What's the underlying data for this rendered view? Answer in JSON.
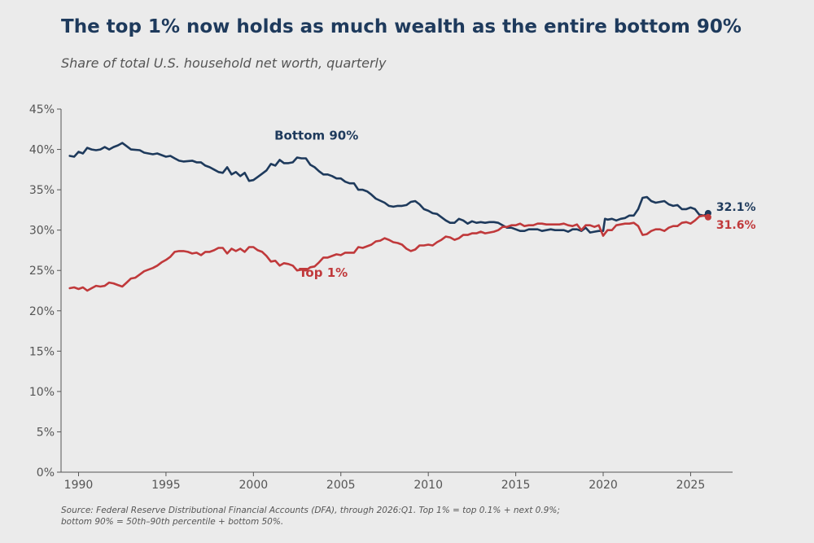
{
  "header": {
    "title": "The top 1% now holds as much wealth as the entire bottom 90%",
    "subtitle": "Share of total U.S. household net worth, quarterly"
  },
  "footer": {
    "source_line1": "Source: Federal Reserve Distributional Financial Accounts (DFA), through 2026:Q1. Top 1% = top 0.1% + next 0.9%;",
    "source_line2": "bottom 90% = 50th–90th percentile + bottom 50%."
  },
  "colors": {
    "bottom90": "#1e3a5c",
    "top1": "#c0393b",
    "axis": "#555555",
    "background": "#ebebeb"
  },
  "chart_data": {
    "type": "line",
    "title": "The top 1% now holds as much wealth as the entire bottom 90%",
    "subtitle": "Share of total U.S. household net worth, quarterly",
    "xlabel": "",
    "ylabel": "",
    "xlim": [
      1989,
      2027.4
    ],
    "ylim": [
      0,
      45
    ],
    "x_ticks": [
      1990,
      1995,
      2000,
      2005,
      2010,
      2015,
      2020,
      2025
    ],
    "y_ticks": [
      0,
      5,
      10,
      15,
      20,
      25,
      30,
      35,
      40,
      45
    ],
    "y_tick_labels": [
      "0%",
      "5%",
      "10%",
      "15%",
      "20%",
      "25%",
      "30%",
      "35%",
      "40%",
      "45%"
    ],
    "grid": false,
    "series": [
      {
        "name": "Bottom 90%",
        "color": "#1e3a5c",
        "end_label": "32.1%",
        "points": [
          [
            1989.5,
            39.2
          ],
          [
            1989.75,
            39.1
          ],
          [
            1990.0,
            39.7
          ],
          [
            1990.25,
            39.5
          ],
          [
            1990.5,
            40.2
          ],
          [
            1990.75,
            40.0
          ],
          [
            1991.0,
            39.9
          ],
          [
            1991.25,
            40.0
          ],
          [
            1991.5,
            40.3
          ],
          [
            1991.75,
            40.0
          ],
          [
            1992.0,
            40.3
          ],
          [
            1992.25,
            40.5
          ],
          [
            1992.5,
            40.8
          ],
          [
            1992.75,
            40.4
          ],
          [
            1993.0,
            40.0
          ],
          [
            1993.5,
            39.9
          ],
          [
            1993.75,
            39.6
          ],
          [
            1994.0,
            39.5
          ],
          [
            1994.25,
            39.4
          ],
          [
            1994.5,
            39.5
          ],
          [
            1994.75,
            39.3
          ],
          [
            1995.0,
            39.1
          ],
          [
            1995.25,
            39.2
          ],
          [
            1995.5,
            38.9
          ],
          [
            1995.75,
            38.6
          ],
          [
            1996.0,
            38.5
          ],
          [
            1996.5,
            38.6
          ],
          [
            1996.75,
            38.4
          ],
          [
            1997.0,
            38.4
          ],
          [
            1997.25,
            38.0
          ],
          [
            1997.5,
            37.8
          ],
          [
            1997.75,
            37.5
          ],
          [
            1998.0,
            37.2
          ],
          [
            1998.25,
            37.1
          ],
          [
            1998.5,
            37.8
          ],
          [
            1998.75,
            36.9
          ],
          [
            1999.0,
            37.2
          ],
          [
            1999.25,
            36.7
          ],
          [
            1999.5,
            37.1
          ],
          [
            1999.75,
            36.1
          ],
          [
            2000.0,
            36.2
          ],
          [
            2000.25,
            36.6
          ],
          [
            2000.5,
            37.0
          ],
          [
            2000.75,
            37.4
          ],
          [
            2001.0,
            38.2
          ],
          [
            2001.25,
            38.0
          ],
          [
            2001.5,
            38.7
          ],
          [
            2001.75,
            38.3
          ],
          [
            2002.0,
            38.3
          ],
          [
            2002.25,
            38.4
          ],
          [
            2002.5,
            39.0
          ],
          [
            2002.75,
            38.9
          ],
          [
            2003.0,
            38.9
          ],
          [
            2003.25,
            38.1
          ],
          [
            2003.5,
            37.8
          ],
          [
            2003.75,
            37.3
          ],
          [
            2004.0,
            36.9
          ],
          [
            2004.25,
            36.9
          ],
          [
            2004.5,
            36.7
          ],
          [
            2004.75,
            36.4
          ],
          [
            2005.0,
            36.4
          ],
          [
            2005.25,
            36.0
          ],
          [
            2005.5,
            35.8
          ],
          [
            2005.75,
            35.8
          ],
          [
            2006.0,
            35.0
          ],
          [
            2006.25,
            35.0
          ],
          [
            2006.5,
            34.8
          ],
          [
            2006.75,
            34.4
          ],
          [
            2007.0,
            33.9
          ],
          [
            2007.5,
            33.4
          ],
          [
            2007.75,
            33.0
          ],
          [
            2008.0,
            32.9
          ],
          [
            2008.25,
            33.0
          ],
          [
            2008.5,
            33.0
          ],
          [
            2008.75,
            33.1
          ],
          [
            2009.0,
            33.5
          ],
          [
            2009.25,
            33.6
          ],
          [
            2009.5,
            33.2
          ],
          [
            2009.75,
            32.6
          ],
          [
            2010.0,
            32.4
          ],
          [
            2010.25,
            32.1
          ],
          [
            2010.5,
            32.0
          ],
          [
            2010.75,
            31.6
          ],
          [
            2011.0,
            31.2
          ],
          [
            2011.25,
            30.9
          ],
          [
            2011.5,
            30.9
          ],
          [
            2011.75,
            31.4
          ],
          [
            2012.0,
            31.2
          ],
          [
            2012.25,
            30.8
          ],
          [
            2012.5,
            31.1
          ],
          [
            2012.75,
            30.9
          ],
          [
            2013.0,
            31.0
          ],
          [
            2013.25,
            30.9
          ],
          [
            2013.5,
            31.0
          ],
          [
            2013.75,
            31.0
          ],
          [
            2014.0,
            30.9
          ],
          [
            2014.25,
            30.6
          ],
          [
            2014.5,
            30.3
          ],
          [
            2014.75,
            30.3
          ],
          [
            2015.0,
            30.1
          ],
          [
            2015.25,
            29.9
          ],
          [
            2015.5,
            29.9
          ],
          [
            2015.75,
            30.1
          ],
          [
            2016.0,
            30.1
          ],
          [
            2016.25,
            30.1
          ],
          [
            2016.5,
            29.9
          ],
          [
            2016.75,
            30.0
          ],
          [
            2017.0,
            30.1
          ],
          [
            2017.25,
            30.0
          ],
          [
            2017.5,
            30.0
          ],
          [
            2017.75,
            30.0
          ],
          [
            2018.0,
            29.8
          ],
          [
            2018.25,
            30.1
          ],
          [
            2018.5,
            30.1
          ],
          [
            2018.75,
            29.9
          ],
          [
            2019.0,
            30.3
          ],
          [
            2019.25,
            29.7
          ],
          [
            2019.5,
            29.8
          ],
          [
            2019.75,
            29.9
          ],
          [
            2020.0,
            29.9
          ],
          [
            2020.1,
            31.4
          ],
          [
            2020.25,
            31.3
          ],
          [
            2020.5,
            31.4
          ],
          [
            2020.75,
            31.2
          ],
          [
            2021.0,
            31.4
          ],
          [
            2021.25,
            31.5
          ],
          [
            2021.5,
            31.8
          ],
          [
            2021.75,
            31.8
          ],
          [
            2022.0,
            32.6
          ],
          [
            2022.25,
            34.0
          ],
          [
            2022.5,
            34.1
          ],
          [
            2022.75,
            33.6
          ],
          [
            2023.0,
            33.4
          ],
          [
            2023.25,
            33.5
          ],
          [
            2023.5,
            33.6
          ],
          [
            2023.75,
            33.2
          ],
          [
            2024.0,
            33.0
          ],
          [
            2024.25,
            33.1
          ],
          [
            2024.5,
            32.6
          ],
          [
            2024.75,
            32.6
          ],
          [
            2025.0,
            32.8
          ],
          [
            2025.25,
            32.6
          ],
          [
            2025.5,
            31.9
          ],
          [
            2025.75,
            31.8
          ],
          [
            2026.0,
            32.1
          ]
        ]
      },
      {
        "name": "Top 1%",
        "color": "#c0393b",
        "end_label": "31.6%",
        "points": [
          [
            1989.5,
            22.8
          ],
          [
            1989.75,
            22.9
          ],
          [
            1990.0,
            22.7
          ],
          [
            1990.25,
            22.9
          ],
          [
            1990.5,
            22.5
          ],
          [
            1990.75,
            22.8
          ],
          [
            1991.0,
            23.1
          ],
          [
            1991.25,
            23.0
          ],
          [
            1991.5,
            23.1
          ],
          [
            1991.75,
            23.5
          ],
          [
            1992.0,
            23.4
          ],
          [
            1992.25,
            23.2
          ],
          [
            1992.5,
            23.0
          ],
          [
            1992.75,
            23.5
          ],
          [
            1993.0,
            24.0
          ],
          [
            1993.25,
            24.1
          ],
          [
            1993.5,
            24.5
          ],
          [
            1993.75,
            24.9
          ],
          [
            1994.0,
            25.1
          ],
          [
            1994.25,
            25.3
          ],
          [
            1994.5,
            25.6
          ],
          [
            1994.75,
            26.0
          ],
          [
            1995.0,
            26.3
          ],
          [
            1995.25,
            26.7
          ],
          [
            1995.5,
            27.3
          ],
          [
            1995.75,
            27.4
          ],
          [
            1996.0,
            27.4
          ],
          [
            1996.25,
            27.3
          ],
          [
            1996.5,
            27.1
          ],
          [
            1996.75,
            27.2
          ],
          [
            1997.0,
            26.9
          ],
          [
            1997.25,
            27.3
          ],
          [
            1997.5,
            27.3
          ],
          [
            1997.75,
            27.5
          ],
          [
            1998.0,
            27.8
          ],
          [
            1998.25,
            27.8
          ],
          [
            1998.5,
            27.1
          ],
          [
            1998.75,
            27.7
          ],
          [
            1999.0,
            27.4
          ],
          [
            1999.25,
            27.7
          ],
          [
            1999.5,
            27.3
          ],
          [
            1999.75,
            27.9
          ],
          [
            2000.0,
            27.9
          ],
          [
            2000.25,
            27.5
          ],
          [
            2000.5,
            27.3
          ],
          [
            2000.75,
            26.8
          ],
          [
            2001.0,
            26.1
          ],
          [
            2001.25,
            26.2
          ],
          [
            2001.5,
            25.6
          ],
          [
            2001.75,
            25.9
          ],
          [
            2002.0,
            25.8
          ],
          [
            2002.25,
            25.6
          ],
          [
            2002.5,
            25.0
          ],
          [
            2002.75,
            25.1
          ],
          [
            2003.0,
            25.0
          ],
          [
            2003.25,
            25.4
          ],
          [
            2003.5,
            25.5
          ],
          [
            2003.75,
            26.0
          ],
          [
            2004.0,
            26.6
          ],
          [
            2004.25,
            26.6
          ],
          [
            2004.5,
            26.8
          ],
          [
            2004.75,
            27.0
          ],
          [
            2005.0,
            26.9
          ],
          [
            2005.25,
            27.2
          ],
          [
            2005.5,
            27.2
          ],
          [
            2005.75,
            27.2
          ],
          [
            2006.0,
            27.9
          ],
          [
            2006.25,
            27.8
          ],
          [
            2006.5,
            28.0
          ],
          [
            2006.75,
            28.2
          ],
          [
            2007.0,
            28.6
          ],
          [
            2007.25,
            28.7
          ],
          [
            2007.5,
            29.0
          ],
          [
            2007.75,
            28.8
          ],
          [
            2008.0,
            28.5
          ],
          [
            2008.25,
            28.4
          ],
          [
            2008.5,
            28.2
          ],
          [
            2008.75,
            27.7
          ],
          [
            2009.0,
            27.4
          ],
          [
            2009.25,
            27.6
          ],
          [
            2009.5,
            28.1
          ],
          [
            2009.75,
            28.1
          ],
          [
            2010.0,
            28.2
          ],
          [
            2010.25,
            28.1
          ],
          [
            2010.5,
            28.5
          ],
          [
            2010.75,
            28.8
          ],
          [
            2011.0,
            29.2
          ],
          [
            2011.25,
            29.1
          ],
          [
            2011.5,
            28.8
          ],
          [
            2011.75,
            29.0
          ],
          [
            2012.0,
            29.4
          ],
          [
            2012.25,
            29.4
          ],
          [
            2012.5,
            29.6
          ],
          [
            2012.75,
            29.6
          ],
          [
            2013.0,
            29.8
          ],
          [
            2013.25,
            29.6
          ],
          [
            2013.5,
            29.7
          ],
          [
            2013.75,
            29.8
          ],
          [
            2014.0,
            30.0
          ],
          [
            2014.25,
            30.4
          ],
          [
            2014.5,
            30.4
          ],
          [
            2014.75,
            30.6
          ],
          [
            2015.0,
            30.6
          ],
          [
            2015.25,
            30.8
          ],
          [
            2015.5,
            30.5
          ],
          [
            2015.75,
            30.6
          ],
          [
            2016.0,
            30.6
          ],
          [
            2016.25,
            30.8
          ],
          [
            2016.5,
            30.8
          ],
          [
            2016.75,
            30.7
          ],
          [
            2017.0,
            30.7
          ],
          [
            2017.25,
            30.7
          ],
          [
            2017.5,
            30.7
          ],
          [
            2017.75,
            30.8
          ],
          [
            2018.0,
            30.6
          ],
          [
            2018.25,
            30.5
          ],
          [
            2018.5,
            30.7
          ],
          [
            2018.75,
            30.0
          ],
          [
            2019.0,
            30.6
          ],
          [
            2019.25,
            30.6
          ],
          [
            2019.5,
            30.4
          ],
          [
            2019.75,
            30.6
          ],
          [
            2020.0,
            29.3
          ],
          [
            2020.25,
            30.0
          ],
          [
            2020.5,
            30.0
          ],
          [
            2020.75,
            30.6
          ],
          [
            2021.0,
            30.7
          ],
          [
            2021.25,
            30.8
          ],
          [
            2021.5,
            30.8
          ],
          [
            2021.75,
            30.9
          ],
          [
            2022.0,
            30.5
          ],
          [
            2022.25,
            29.4
          ],
          [
            2022.5,
            29.5
          ],
          [
            2022.75,
            29.9
          ],
          [
            2023.0,
            30.1
          ],
          [
            2023.25,
            30.1
          ],
          [
            2023.5,
            29.9
          ],
          [
            2023.75,
            30.3
          ],
          [
            2024.0,
            30.5
          ],
          [
            2024.25,
            30.5
          ],
          [
            2024.5,
            30.9
          ],
          [
            2024.75,
            31.0
          ],
          [
            2025.0,
            30.8
          ],
          [
            2025.25,
            31.2
          ],
          [
            2025.5,
            31.7
          ],
          [
            2025.75,
            31.8
          ],
          [
            2026.0,
            31.6
          ]
        ]
      }
    ]
  }
}
